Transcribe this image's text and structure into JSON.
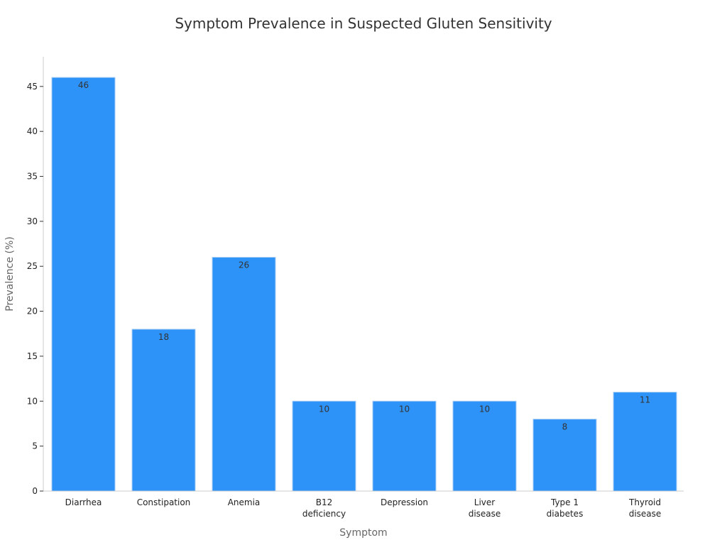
{
  "chart_data": {
    "type": "bar",
    "title": "Symptom Prevalence in Suspected Gluten Sensitivity",
    "xlabel": "Symptom",
    "ylabel": "Prevalence (%)",
    "categories": [
      [
        "Diarrhea"
      ],
      [
        "Constipation"
      ],
      [
        "Anemia"
      ],
      [
        "B12",
        "deficiency"
      ],
      [
        "Depression"
      ],
      [
        "Liver",
        "disease"
      ],
      [
        "Type 1",
        "diabetes"
      ],
      [
        "Thyroid",
        "disease"
      ]
    ],
    "values": [
      46,
      18,
      26,
      10,
      10,
      10,
      8,
      11
    ],
    "data_labels": [
      "46",
      "18",
      "26",
      "10",
      "10",
      "10",
      "8",
      "11"
    ],
    "yticks": [
      0,
      5,
      10,
      15,
      20,
      25,
      30,
      35,
      40,
      45
    ],
    "ytick_labels": [
      "0",
      "5",
      "10",
      "15",
      "20",
      "25",
      "30",
      "35",
      "40",
      "45"
    ],
    "ylim": [
      0,
      48.3
    ],
    "grid": false,
    "legend": "none",
    "colors": {
      "bar_fill": "#2e93f8",
      "bar_stroke": "#a9cdf3",
      "axis": "#cccccc",
      "tick_mark": "#333333"
    }
  }
}
